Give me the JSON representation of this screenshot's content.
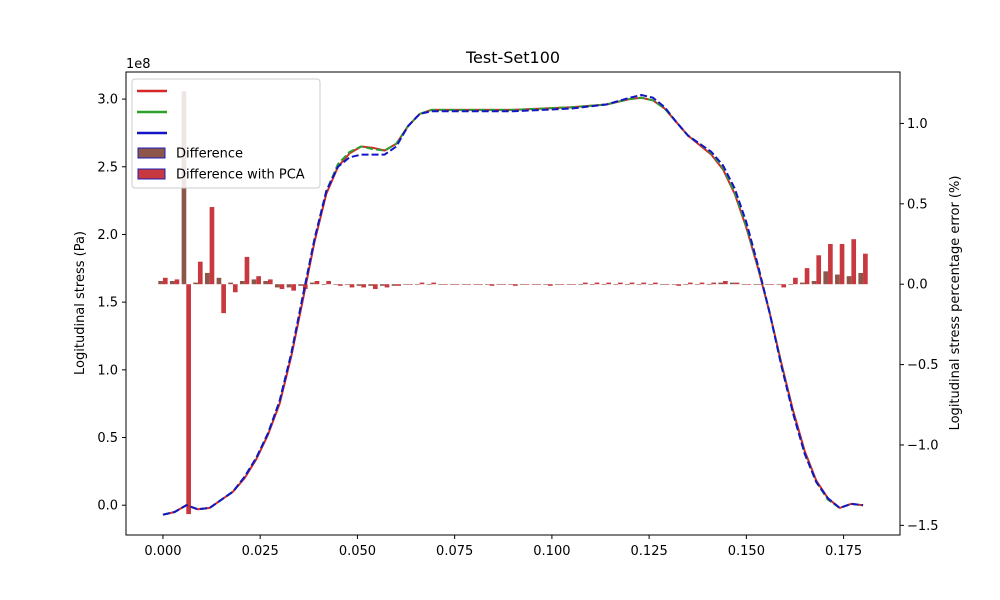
{
  "chart_data": {
    "type": "line",
    "title": "Test-Set100",
    "xlabel": "",
    "ylabel_left": "Logitudinal stress (Pa)",
    "ylabel_right": "Logitudinal stress percentage error (%)",
    "y_left_offset_label": "1e8",
    "xlim": [
      -0.0095,
      0.1895
    ],
    "ylim_left": [
      -0.22,
      3.2
    ],
    "ylim_right": [
      -1.56,
      1.32
    ],
    "x_ticks": [
      0.0,
      0.025,
      0.05,
      0.075,
      0.1,
      0.125,
      0.15,
      0.175
    ],
    "x_tick_labels": [
      "0.000",
      "0.025",
      "0.050",
      "0.075",
      "0.100",
      "0.125",
      "0.150",
      "0.175"
    ],
    "y_left_ticks": [
      0.0,
      0.5,
      1.0,
      1.5,
      2.0,
      2.5,
      3.0
    ],
    "y_left_tick_labels": [
      "0.0",
      "0.5",
      "1.0",
      "1.5",
      "2.0",
      "2.5",
      "3.0"
    ],
    "y_right_ticks": [
      -1.5,
      -1.0,
      -0.5,
      0.0,
      0.5,
      1.0
    ],
    "y_right_tick_labels": [
      "−1.5",
      "−1.0",
      "−0.5",
      "0.0",
      "0.5",
      "1.0"
    ],
    "grid": false,
    "legend_position": "upper-left",
    "series": [
      {
        "label": "",
        "kind": "line",
        "color": "#d62728",
        "dash": "solid",
        "x": [
          0.0,
          0.003,
          0.006,
          0.009,
          0.012,
          0.015,
          0.018,
          0.021,
          0.024,
          0.027,
          0.03,
          0.033,
          0.036,
          0.039,
          0.042,
          0.045,
          0.048,
          0.051,
          0.054,
          0.057,
          0.06,
          0.063,
          0.066,
          0.069,
          0.072,
          0.075,
          0.09,
          0.105,
          0.114,
          0.12,
          0.123,
          0.126,
          0.129,
          0.132,
          0.135,
          0.138,
          0.141,
          0.144,
          0.147,
          0.15,
          0.153,
          0.156,
          0.159,
          0.162,
          0.165,
          0.168,
          0.171,
          0.174,
          0.177,
          0.18
        ],
        "y": [
          -0.07,
          -0.05,
          0.0,
          -0.03,
          -0.02,
          0.04,
          0.1,
          0.2,
          0.34,
          0.52,
          0.75,
          1.1,
          1.52,
          1.95,
          2.3,
          2.5,
          2.6,
          2.65,
          2.64,
          2.62,
          2.67,
          2.8,
          2.89,
          2.92,
          2.92,
          2.92,
          2.92,
          2.94,
          2.96,
          3.0,
          3.01,
          2.99,
          2.93,
          2.83,
          2.73,
          2.66,
          2.59,
          2.48,
          2.3,
          2.05,
          1.75,
          1.42,
          1.05,
          0.7,
          0.4,
          0.18,
          0.05,
          -0.02,
          0.01,
          0.0
        ]
      },
      {
        "label": "",
        "kind": "line",
        "color": "#2ca02c",
        "dash": "dashed",
        "x": [
          0.0,
          0.003,
          0.006,
          0.009,
          0.012,
          0.015,
          0.018,
          0.021,
          0.024,
          0.027,
          0.03,
          0.033,
          0.036,
          0.039,
          0.042,
          0.045,
          0.048,
          0.051,
          0.054,
          0.057,
          0.06,
          0.063,
          0.066,
          0.069,
          0.072,
          0.075,
          0.09,
          0.105,
          0.114,
          0.12,
          0.123,
          0.126,
          0.129,
          0.132,
          0.135,
          0.138,
          0.141,
          0.144,
          0.147,
          0.15,
          0.153,
          0.156,
          0.159,
          0.162,
          0.165,
          0.168,
          0.171,
          0.174,
          0.177,
          0.18
        ],
        "y": [
          -0.07,
          -0.05,
          0.0,
          -0.03,
          -0.02,
          0.04,
          0.1,
          0.21,
          0.35,
          0.53,
          0.77,
          1.12,
          1.55,
          1.97,
          2.32,
          2.52,
          2.61,
          2.65,
          2.63,
          2.62,
          2.67,
          2.8,
          2.89,
          2.92,
          2.92,
          2.92,
          2.92,
          2.94,
          2.96,
          3.0,
          3.01,
          2.99,
          2.93,
          2.83,
          2.73,
          2.67,
          2.6,
          2.49,
          2.31,
          2.06,
          1.76,
          1.42,
          1.04,
          0.68,
          0.38,
          0.17,
          0.04,
          -0.02,
          0.01,
          0.0
        ]
      },
      {
        "label": "",
        "kind": "line",
        "color": "#1515c8",
        "dash": "dashed",
        "x": [
          0.0,
          0.003,
          0.006,
          0.009,
          0.012,
          0.015,
          0.018,
          0.021,
          0.024,
          0.027,
          0.03,
          0.033,
          0.036,
          0.039,
          0.042,
          0.045,
          0.048,
          0.051,
          0.054,
          0.057,
          0.06,
          0.063,
          0.066,
          0.069,
          0.072,
          0.075,
          0.09,
          0.105,
          0.114,
          0.12,
          0.123,
          0.126,
          0.129,
          0.132,
          0.135,
          0.138,
          0.141,
          0.144,
          0.147,
          0.15,
          0.153,
          0.156,
          0.159,
          0.162,
          0.165,
          0.168,
          0.171,
          0.174,
          0.177,
          0.18
        ],
        "y": [
          -0.07,
          -0.05,
          0.0,
          -0.03,
          -0.02,
          0.04,
          0.1,
          0.21,
          0.35,
          0.53,
          0.77,
          1.12,
          1.55,
          1.97,
          2.32,
          2.5,
          2.57,
          2.59,
          2.59,
          2.59,
          2.65,
          2.8,
          2.89,
          2.91,
          2.91,
          2.91,
          2.91,
          2.93,
          2.96,
          3.01,
          3.03,
          3.01,
          2.94,
          2.83,
          2.73,
          2.67,
          2.61,
          2.51,
          2.34,
          2.09,
          1.77,
          1.42,
          1.03,
          0.68,
          0.38,
          0.17,
          0.05,
          -0.02,
          0.01,
          0.0
        ]
      },
      {
        "label": "Difference",
        "kind": "bar",
        "face_color": "#8c564b",
        "edge_color": "#1f1fb4",
        "bar_width": 0.0012,
        "offset": -0.0006,
        "x": [
          0.0,
          0.003,
          0.006,
          0.009,
          0.012,
          0.015,
          0.018,
          0.021,
          0.024,
          0.027,
          0.03,
          0.033,
          0.036,
          0.039,
          0.042,
          0.045,
          0.048,
          0.051,
          0.054,
          0.057,
          0.06,
          0.063,
          0.066,
          0.069,
          0.072,
          0.075,
          0.078,
          0.081,
          0.084,
          0.087,
          0.09,
          0.093,
          0.096,
          0.099,
          0.102,
          0.105,
          0.108,
          0.111,
          0.114,
          0.117,
          0.12,
          0.123,
          0.126,
          0.129,
          0.132,
          0.135,
          0.138,
          0.141,
          0.144,
          0.147,
          0.15,
          0.153,
          0.156,
          0.159,
          0.162,
          0.165,
          0.168,
          0.171,
          0.174,
          0.177,
          0.18
        ],
        "y": [
          0.02,
          0.02,
          1.2,
          0.01,
          0.07,
          0.04,
          0.01,
          0.02,
          0.03,
          0.02,
          -0.02,
          -0.02,
          -0.01,
          0.01,
          0.0,
          -0.0,
          0.0,
          -0.01,
          -0.01,
          -0.01,
          -0.01,
          0.0,
          -0.0,
          0.0,
          0.0,
          0.0,
          0.0,
          0.0,
          0.0,
          0.0,
          0.0,
          0.0,
          0.0,
          0.0,
          0.0,
          0.0,
          0.0,
          0.0,
          0.0,
          0.0,
          0.0,
          0.0,
          0.0,
          0.0,
          0.0,
          0.0,
          0.0,
          0.0,
          0.01,
          0.01,
          0.0,
          0.0,
          0.0,
          0.0,
          0.0,
          0.01,
          0.02,
          0.08,
          0.06,
          0.05,
          0.07
        ]
      },
      {
        "label": "Difference with PCA",
        "kind": "bar",
        "face_color": "#c8383f",
        "edge_color": "#1f1fb4",
        "bar_width": 0.0012,
        "offset": 0.0006,
        "x": [
          0.0,
          0.003,
          0.006,
          0.009,
          0.012,
          0.015,
          0.018,
          0.021,
          0.024,
          0.027,
          0.03,
          0.033,
          0.036,
          0.039,
          0.042,
          0.045,
          0.048,
          0.051,
          0.054,
          0.057,
          0.06,
          0.063,
          0.066,
          0.069,
          0.072,
          0.075,
          0.078,
          0.081,
          0.084,
          0.087,
          0.09,
          0.093,
          0.096,
          0.099,
          0.102,
          0.105,
          0.108,
          0.111,
          0.114,
          0.117,
          0.12,
          0.123,
          0.126,
          0.129,
          0.132,
          0.135,
          0.138,
          0.141,
          0.144,
          0.147,
          0.15,
          0.153,
          0.156,
          0.159,
          0.162,
          0.165,
          0.168,
          0.171,
          0.174,
          0.177,
          0.18
        ],
        "y": [
          0.04,
          0.03,
          -1.43,
          0.14,
          0.48,
          -0.18,
          -0.05,
          0.17,
          0.05,
          0.03,
          -0.03,
          -0.04,
          -0.03,
          0.02,
          0.02,
          -0.01,
          -0.02,
          -0.02,
          -0.03,
          -0.02,
          -0.01,
          0.0,
          0.01,
          0.01,
          0.0,
          0.0,
          0.0,
          0.0,
          -0.01,
          0.0,
          -0.01,
          0.0,
          0.0,
          -0.01,
          0.0,
          0.0,
          0.01,
          0.01,
          0.01,
          0.01,
          0.01,
          0.01,
          0.01,
          0.0,
          -0.01,
          0.01,
          0.01,
          0.01,
          0.02,
          0.01,
          0.0,
          0.0,
          0.0,
          -0.02,
          0.04,
          0.1,
          0.18,
          0.25,
          0.25,
          0.28,
          0.19
        ]
      }
    ]
  }
}
